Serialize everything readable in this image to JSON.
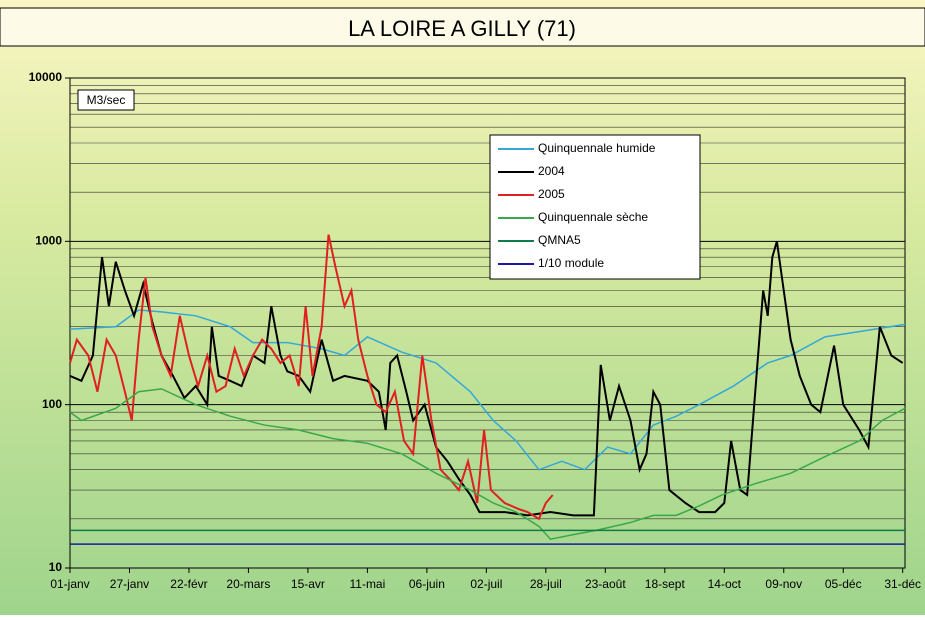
{
  "chart_data": {
    "type": "line",
    "title": "LA LOIRE A GILLY (71)",
    "y_unit_label": "M3/sec",
    "log_scale": true,
    "grid": true,
    "legend_position": "top-center",
    "ylim": [
      10,
      10000
    ],
    "yticks": [
      10,
      100,
      1000,
      10000
    ],
    "xlim": [
      0,
      365
    ],
    "xticks": [
      {
        "value": 0,
        "label": "01-janv"
      },
      {
        "value": 26,
        "label": "27-janv"
      },
      {
        "value": 52,
        "label": "22-févr"
      },
      {
        "value": 78,
        "label": "20-mars"
      },
      {
        "value": 104,
        "label": "15-avr"
      },
      {
        "value": 130,
        "label": "11-mai"
      },
      {
        "value": 156,
        "label": "06-juin"
      },
      {
        "value": 182,
        "label": "02-juil"
      },
      {
        "value": 208,
        "label": "28-juil"
      },
      {
        "value": 234,
        "label": "23-août"
      },
      {
        "value": 260,
        "label": "18-sept"
      },
      {
        "value": 286,
        "label": "14-oct"
      },
      {
        "value": 312,
        "label": "09-nov"
      },
      {
        "value": 338,
        "label": "05-déc"
      },
      {
        "value": 364,
        "label": "31-déc"
      }
    ],
    "series": [
      {
        "name": "Quinquennale humide",
        "color": "#35a8d8",
        "x": [
          0,
          20,
          30,
          40,
          55,
          70,
          80,
          95,
          110,
          120,
          130,
          145,
          160,
          175,
          185,
          195,
          205,
          215,
          225,
          235,
          245,
          255,
          265,
          275,
          290,
          305,
          315,
          330,
          345,
          365
        ],
        "values": [
          290,
          300,
          380,
          370,
          350,
          300,
          240,
          240,
          220,
          200,
          260,
          210,
          180,
          120,
          80,
          60,
          40,
          45,
          40,
          55,
          50,
          75,
          85,
          100,
          130,
          180,
          200,
          260,
          280,
          310
        ]
      },
      {
        "name": "2004",
        "color": "#000000",
        "x": [
          0,
          5,
          10,
          14,
          17,
          20,
          24,
          28,
          32,
          36,
          40,
          45,
          50,
          55,
          60,
          62,
          65,
          70,
          75,
          80,
          85,
          88,
          92,
          95,
          100,
          105,
          110,
          115,
          120,
          130,
          135,
          138,
          140,
          143,
          147,
          150,
          155,
          160,
          165,
          170,
          175,
          179,
          190,
          200,
          210,
          220,
          229,
          232,
          236,
          240,
          245,
          249,
          252,
          255,
          258,
          262,
          269,
          275,
          282,
          286,
          289,
          293,
          296,
          303,
          305,
          307,
          309,
          312,
          315,
          319,
          324,
          328,
          334,
          338,
          345,
          349,
          354,
          359,
          364
        ],
        "values": [
          150,
          140,
          200,
          800,
          400,
          750,
          500,
          350,
          550,
          320,
          200,
          150,
          110,
          130,
          100,
          300,
          150,
          140,
          130,
          200,
          180,
          400,
          200,
          160,
          150,
          120,
          250,
          140,
          150,
          140,
          120,
          70,
          180,
          200,
          120,
          80,
          100,
          55,
          45,
          35,
          28,
          22,
          22,
          21,
          22,
          21,
          21,
          175,
          80,
          130,
          80,
          40,
          50,
          120,
          100,
          30,
          25,
          22,
          22,
          25,
          60,
          30,
          28,
          500,
          350,
          800,
          1000,
          500,
          250,
          150,
          100,
          90,
          230,
          100,
          70,
          55,
          300,
          200,
          180
        ]
      },
      {
        "name": "2005",
        "color": "#e02020",
        "x": [
          0,
          3,
          8,
          12,
          16,
          20,
          24,
          27,
          30,
          33,
          36,
          40,
          44,
          48,
          52,
          56,
          60,
          64,
          68,
          72,
          76,
          80,
          84,
          88,
          92,
          96,
          100,
          103,
          106,
          110,
          113,
          116,
          120,
          123,
          126,
          130,
          134,
          138,
          142,
          146,
          150,
          154,
          158,
          162,
          166,
          170,
          174,
          178,
          181,
          184,
          190,
          196,
          200,
          205,
          208,
          211
        ],
        "values": [
          180,
          250,
          200,
          120,
          250,
          200,
          120,
          80,
          250,
          600,
          300,
          200,
          150,
          350,
          200,
          130,
          200,
          120,
          130,
          220,
          150,
          200,
          250,
          220,
          180,
          200,
          130,
          400,
          150,
          300,
          1100,
          700,
          400,
          500,
          250,
          150,
          100,
          90,
          120,
          60,
          50,
          200,
          80,
          40,
          35,
          30,
          45,
          25,
          70,
          30,
          25,
          23,
          22,
          20,
          25,
          28
        ]
      },
      {
        "name": "Quinquennale sèche",
        "color": "#3aa84a",
        "x": [
          0,
          5,
          20,
          30,
          40,
          55,
          70,
          85,
          100,
          115,
          130,
          145,
          160,
          175,
          185,
          195,
          205,
          210,
          220,
          230,
          245,
          255,
          265,
          275,
          285,
          300,
          315,
          330,
          345,
          355,
          365
        ],
        "values": [
          90,
          80,
          95,
          120,
          125,
          100,
          85,
          75,
          70,
          62,
          58,
          50,
          38,
          30,
          25,
          22,
          18,
          15,
          16,
          17,
          19,
          21,
          21,
          24,
          28,
          33,
          38,
          48,
          60,
          80,
          95
        ]
      },
      {
        "name": "QMNA5",
        "color": "#0f7a4a",
        "x": [
          0,
          365
        ],
        "values": [
          17,
          17
        ]
      },
      {
        "name": "1/10 module",
        "color": "#1a1aa0",
        "x": [
          0,
          365
        ],
        "values": [
          14,
          14
        ]
      }
    ]
  }
}
